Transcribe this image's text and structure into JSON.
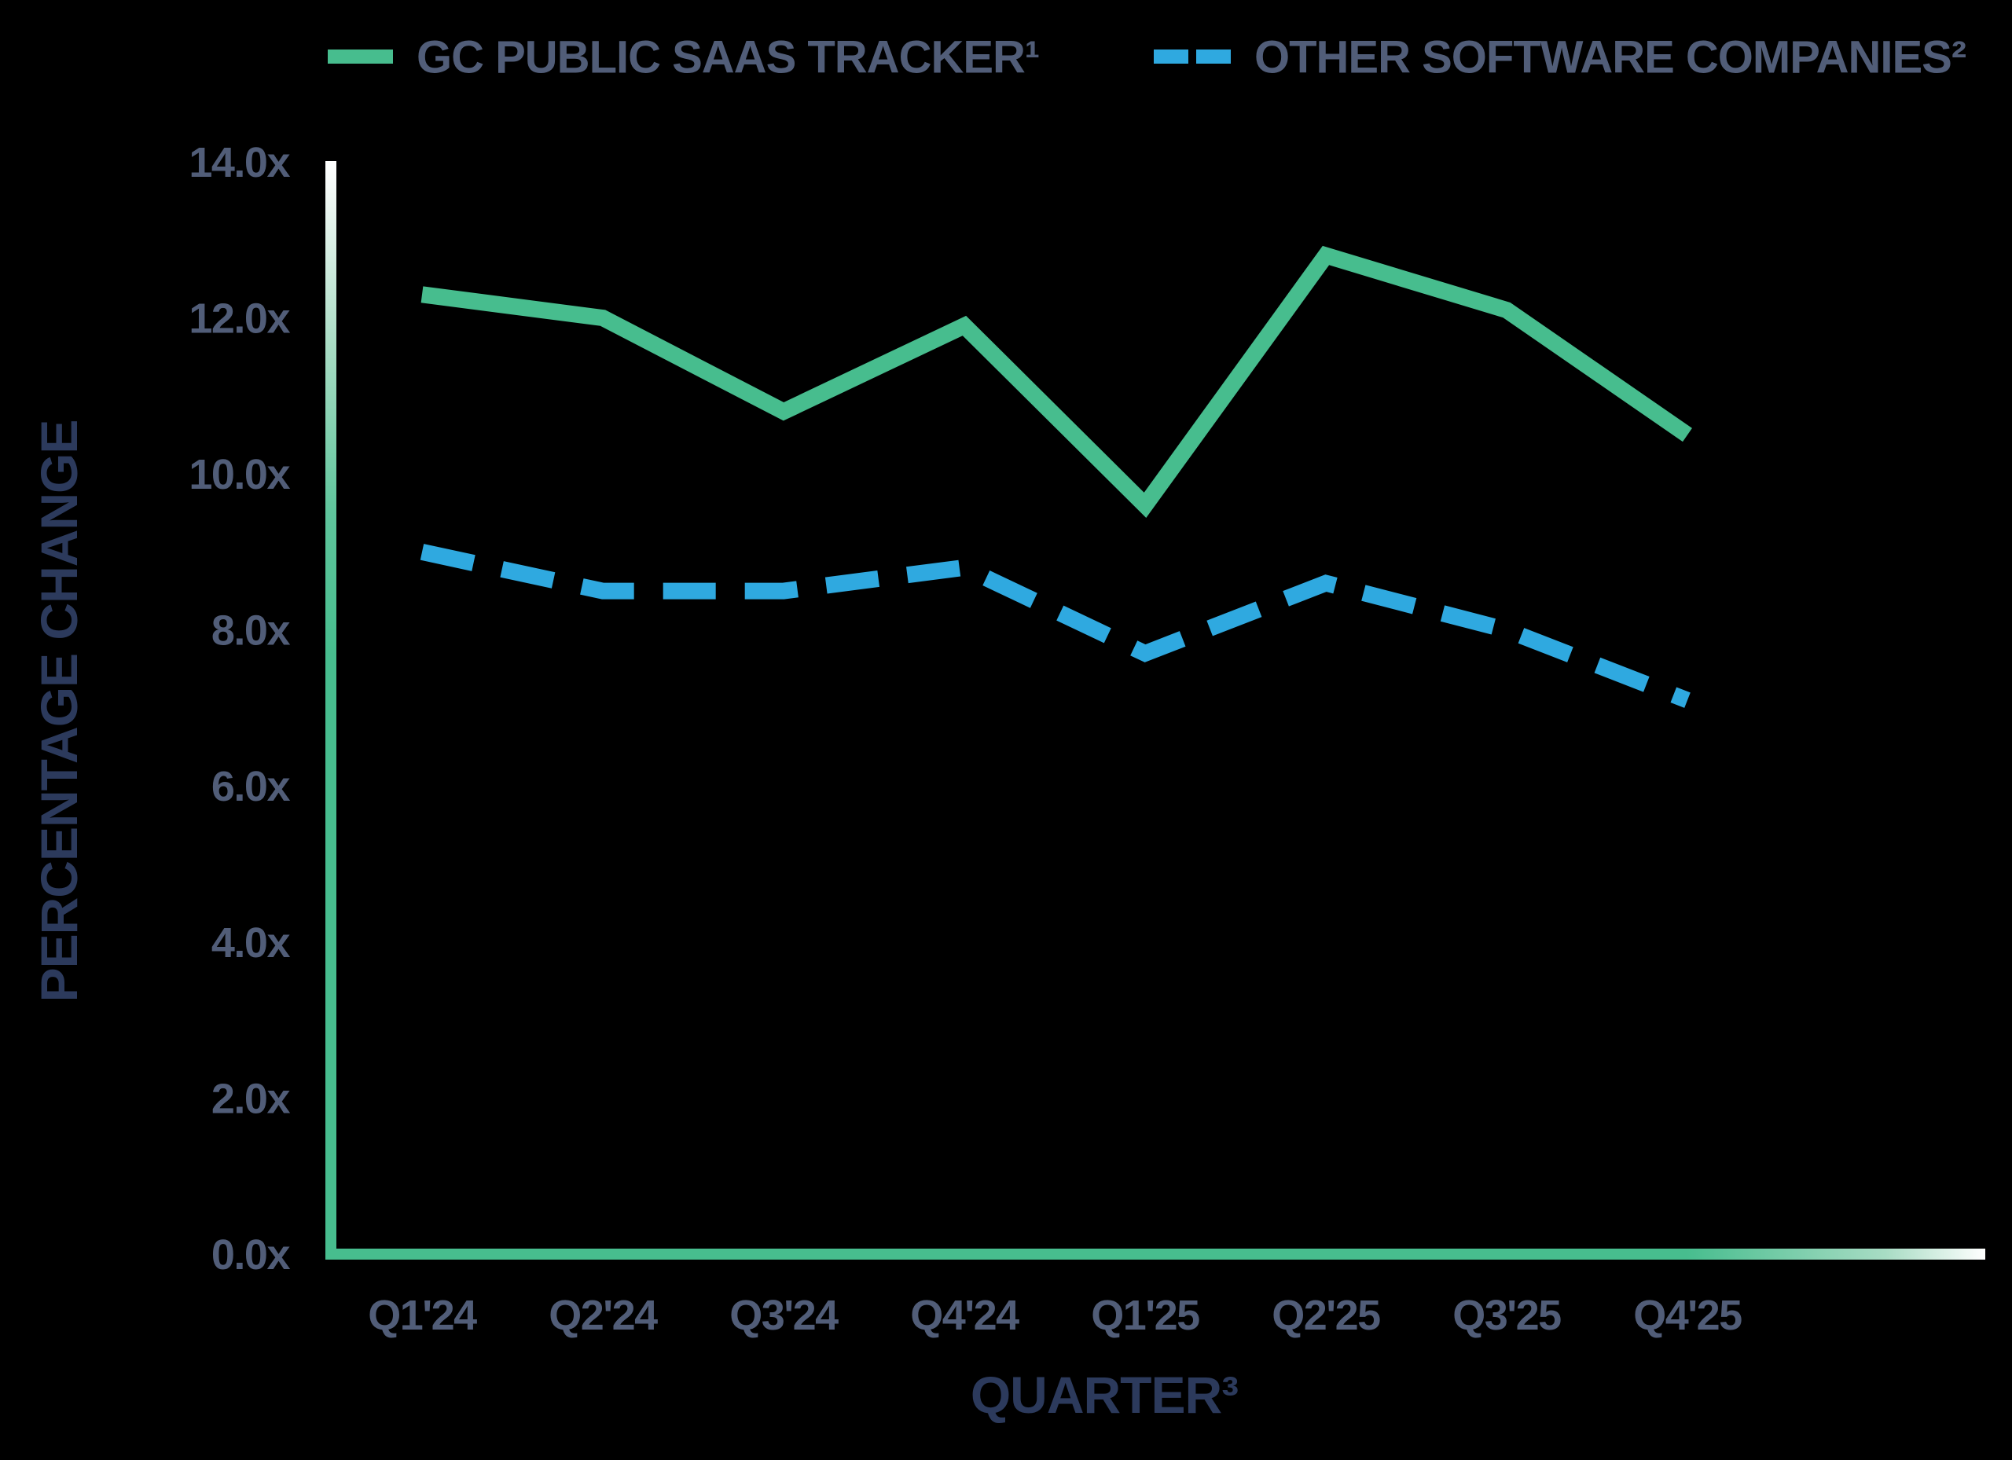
{
  "chart_data": {
    "type": "line",
    "title": "",
    "xlabel": "QUARTER³",
    "ylabel": "PERCENTAGE CHANGE",
    "categories": [
      "Q1'24",
      "Q2'24",
      "Q3'24",
      "Q4'24",
      "Q1'25",
      "Q2'25",
      "Q3'25",
      "Q4'25"
    ],
    "series": [
      {
        "name": "GC PUBLIC SAAS TRACKER¹",
        "color": "#47bd8e",
        "line_style": "solid",
        "values": [
          12.3,
          12.0,
          10.8,
          11.9,
          9.6,
          12.8,
          12.1,
          10.5
        ]
      },
      {
        "name": "OTHER SOFTWARE COMPANIES²",
        "color": "#2fa9e0",
        "line_style": "dashed",
        "values": [
          9.0,
          8.5,
          8.5,
          8.8,
          7.7,
          8.6,
          8.0,
          7.1
        ]
      }
    ],
    "yticks": [
      {
        "label": "14.0x",
        "value": 14.0
      },
      {
        "label": "12.0x",
        "value": 12.0
      },
      {
        "label": "10.0x",
        "value": 10.0
      },
      {
        "label": "8.0x",
        "value": 8.0
      },
      {
        "label": "6.0x",
        "value": 6.0
      },
      {
        "label": "4.0x",
        "value": 4.0
      },
      {
        "label": "2.0x",
        "value": 2.0
      },
      {
        "label": "0.0x",
        "value": 0.0
      }
    ],
    "ylim": [
      0,
      14
    ],
    "grid": false,
    "legend_position": "top",
    "colors": {
      "background": "#000000",
      "tick_label": "#515d78",
      "legend_label": "#515d78",
      "axis_title": "#2c3a5c",
      "axis_gradient_green": "#47bd8e",
      "axis_gradient_white": "#ffffff"
    }
  }
}
